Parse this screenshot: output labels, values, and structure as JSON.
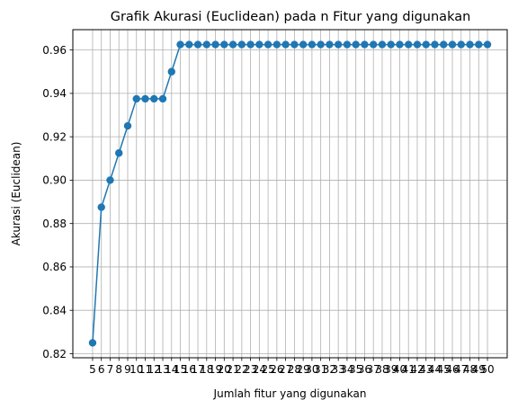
{
  "chart_data": {
    "type": "line",
    "title": "Grafik Akurasi (Euclidean) pada n Fitur yang digunakan",
    "xlabel": "Jumlah fitur yang digunakan",
    "ylabel": "Akurasi (Euclidean)",
    "x": [
      5,
      6,
      7,
      8,
      9,
      10,
      11,
      12,
      13,
      14,
      15,
      16,
      17,
      18,
      19,
      20,
      21,
      22,
      23,
      24,
      25,
      26,
      27,
      28,
      29,
      30,
      31,
      32,
      33,
      34,
      35,
      36,
      37,
      38,
      39,
      40,
      41,
      42,
      43,
      44,
      45,
      46,
      47,
      48,
      49,
      50
    ],
    "series": [
      {
        "values": [
          0.825,
          0.8875,
          0.9,
          0.9125,
          0.925,
          0.9375,
          0.9375,
          0.9375,
          0.9375,
          0.95,
          0.9625,
          0.9625,
          0.9625,
          0.9625,
          0.9625,
          0.9625,
          0.9625,
          0.9625,
          0.9625,
          0.9625,
          0.9625,
          0.9625,
          0.9625,
          0.9625,
          0.9625,
          0.9625,
          0.9625,
          0.9625,
          0.9625,
          0.9625,
          0.9625,
          0.9625,
          0.9625,
          0.9625,
          0.9625,
          0.9625,
          0.9625,
          0.9625,
          0.9625,
          0.9625,
          0.9625,
          0.9625,
          0.9625,
          0.9625,
          0.9625,
          0.9625
        ],
        "color": "#1f77b4"
      }
    ],
    "xticks": [
      5,
      6,
      7,
      8,
      9,
      10,
      11,
      12,
      13,
      14,
      15,
      16,
      17,
      18,
      19,
      20,
      21,
      22,
      23,
      24,
      25,
      26,
      27,
      28,
      29,
      30,
      31,
      32,
      33,
      34,
      35,
      36,
      37,
      38,
      39,
      40,
      41,
      42,
      43,
      44,
      45,
      46,
      47,
      48,
      49,
      50
    ],
    "yticks": [
      "0.82",
      "0.84",
      "0.86",
      "0.88",
      "0.90",
      "0.92",
      "0.94",
      "0.96"
    ],
    "xlim": [
      2.75,
      52.25
    ],
    "ylim": [
      0.818125,
      0.969375
    ],
    "grid": true,
    "marker": "circle"
  }
}
